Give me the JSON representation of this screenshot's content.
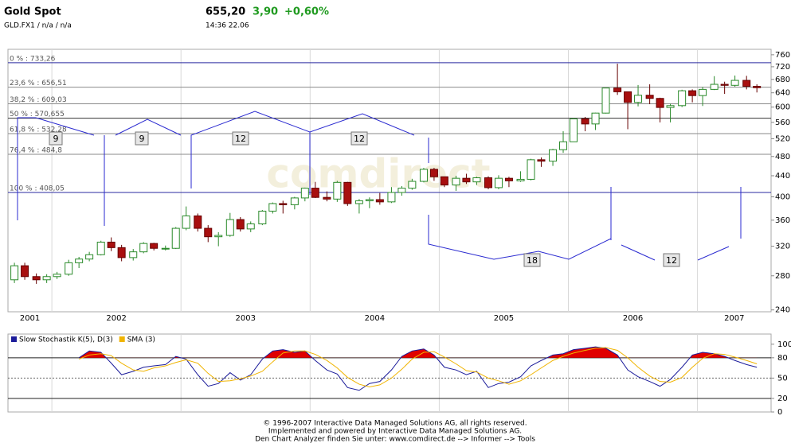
{
  "header": {
    "title": "Gold Spot",
    "price": "655,20",
    "change": "3,90",
    "change_pct": "+0,60%",
    "symbol": "GLD.FX1  /  n/a  /  n/a",
    "time": "14:36   22.06"
  },
  "chart_data": [
    {
      "type": "candlestick",
      "x": [
        2001.71,
        2001.79,
        2001.88,
        2001.96,
        2002.04,
        2002.13,
        2002.21,
        2002.29,
        2002.38,
        2002.46,
        2002.54,
        2002.63,
        2002.71,
        2002.79,
        2002.88,
        2002.96,
        2003.04,
        2003.13,
        2003.21,
        2003.29,
        2003.38,
        2003.46,
        2003.54,
        2003.63,
        2003.71,
        2003.79,
        2003.88,
        2003.96,
        2004.04,
        2004.13,
        2004.21,
        2004.29,
        2004.38,
        2004.46,
        2004.54,
        2004.63,
        2004.71,
        2004.79,
        2004.88,
        2004.96,
        2005.04,
        2005.13,
        2005.21,
        2005.29,
        2005.38,
        2005.46,
        2005.54,
        2005.63,
        2005.71,
        2005.79,
        2005.88,
        2005.96,
        2006.04,
        2006.13,
        2006.21,
        2006.29,
        2006.38,
        2006.46,
        2006.54,
        2006.63,
        2006.71,
        2006.79,
        2006.88,
        2006.96,
        2007.04,
        2007.13,
        2007.21,
        2007.29,
        2007.38,
        2007.46
      ],
      "open": [
        275,
        293,
        279,
        275,
        279,
        282,
        297,
        302,
        308,
        326,
        318,
        304,
        312,
        324,
        317,
        317,
        347,
        367,
        347,
        334,
        336,
        361,
        346,
        354,
        375,
        388,
        386,
        398,
        416,
        399,
        396,
        427,
        388,
        393,
        395,
        391,
        408,
        416,
        429,
        453,
        438,
        422,
        435,
        428,
        436,
        417,
        435,
        430,
        433,
        473,
        470,
        495,
        513,
        569,
        556,
        584,
        654,
        643,
        613,
        633,
        624,
        599,
        604,
        646,
        632,
        650,
        665,
        662,
        677,
        659
      ],
      "high": [
        297,
        297,
        283,
        282,
        285,
        301,
        305,
        312,
        328,
        333,
        322,
        316,
        326,
        325,
        321,
        349,
        383,
        371,
        352,
        341,
        372,
        365,
        358,
        377,
        390,
        393,
        400,
        417,
        428,
        410,
        430,
        428,
        396,
        399,
        407,
        418,
        420,
        434,
        456,
        456,
        438,
        440,
        444,
        438,
        439,
        441,
        438,
        449,
        475,
        478,
        497,
        538,
        571,
        574,
        585,
        654,
        730,
        643,
        663,
        665,
        626,
        609,
        649,
        650,
        657,
        690,
        673,
        692,
        691,
        665
      ],
      "low": [
        271,
        275,
        270,
        271,
        276,
        280,
        290,
        299,
        307,
        313,
        299,
        300,
        310,
        314,
        314,
        316,
        344,
        342,
        326,
        320,
        334,
        342,
        341,
        352,
        371,
        371,
        378,
        392,
        398,
        392,
        391,
        384,
        371,
        380,
        386,
        389,
        402,
        413,
        427,
        430,
        418,
        411,
        424,
        422,
        414,
        414,
        418,
        428,
        431,
        458,
        460,
        488,
        516,
        538,
        541,
        583,
        634,
        543,
        602,
        608,
        560,
        560,
        600,
        613,
        603,
        648,
        637,
        658,
        650,
        641
      ],
      "close": [
        293,
        279,
        275,
        279,
        282,
        297,
        302,
        308,
        326,
        318,
        304,
        312,
        324,
        317,
        317,
        347,
        367,
        347,
        334,
        336,
        361,
        346,
        354,
        375,
        388,
        386,
        398,
        416,
        399,
        396,
        427,
        388,
        393,
        395,
        391,
        408,
        416,
        429,
        453,
        438,
        422,
        435,
        428,
        436,
        417,
        435,
        430,
        433,
        473,
        470,
        495,
        513,
        569,
        556,
        584,
        654,
        643,
        613,
        633,
        624,
        599,
        604,
        646,
        632,
        650,
        665,
        662,
        677,
        659,
        655
      ],
      "up_color": "#2a8a2a",
      "down_color": "#a80f0f",
      "xlim": [
        2001.66,
        2007.57
      ],
      "xticks": [
        2001,
        2002,
        2003,
        2004,
        2005,
        2006,
        2007
      ],
      "grid_x": true,
      "ylim": [
        238,
        779
      ],
      "yticks": [
        240,
        280,
        320,
        360,
        400,
        440,
        480,
        520,
        560,
        600,
        640,
        680,
        720,
        760
      ],
      "log_scale": true,
      "fib_levels": [
        {
          "label": "0 % : 733,26",
          "value": 733.26,
          "color": "#2a2aa0"
        },
        {
          "label": "23,6 % : 656,51",
          "value": 656.51,
          "color": "#8a8a8a"
        },
        {
          "label": "38,2 % : 609,03",
          "value": 609.03,
          "color": "#8a8a8a"
        },
        {
          "label": "50 % : 570,655",
          "value": 570.655,
          "color": "#333333"
        },
        {
          "label": "61,8 % : 532,28",
          "value": 532.28,
          "color": "#8a8a8a"
        },
        {
          "label": "76,4 % : 484,8",
          "value": 484.8,
          "color": "#8a8a8a"
        },
        {
          "label": "100 % : 408,05",
          "value": 408.05,
          "color": "#2a2aa0"
        }
      ],
      "annotations": [
        "9",
        "9",
        "12",
        "12",
        "18",
        "12"
      ],
      "watermark": "comdirect"
    },
    {
      "type": "line",
      "series": [
        {
          "name": "Slow Stochastik K(5), D(3)",
          "color": "#1c1c9a",
          "values": [
            null,
            null,
            null,
            null,
            null,
            null,
            80,
            90,
            88,
            72,
            55,
            60,
            66,
            68,
            70,
            82,
            78,
            55,
            38,
            42,
            58,
            47,
            55,
            78,
            90,
            92,
            88,
            90,
            76,
            62,
            56,
            36,
            32,
            42,
            45,
            62,
            82,
            90,
            93,
            84,
            66,
            62,
            55,
            60,
            36,
            42,
            44,
            52,
            68,
            76,
            84,
            86,
            92,
            94,
            96,
            94,
            84,
            62,
            52,
            45,
            38,
            48,
            66,
            84,
            88,
            86,
            82,
            76,
            70,
            66
          ]
        },
        {
          "name": "SMA (3)",
          "color": "#f0b400",
          "values": [
            null,
            null,
            null,
            null,
            null,
            null,
            78,
            84,
            86,
            83,
            72,
            62,
            60,
            65,
            68,
            73,
            77,
            72,
            57,
            45,
            46,
            49,
            53,
            60,
            74,
            87,
            90,
            90,
            85,
            76,
            65,
            51,
            41,
            37,
            40,
            50,
            63,
            78,
            88,
            89,
            81,
            71,
            61,
            59,
            50,
            46,
            41,
            46,
            55,
            65,
            76,
            82,
            87,
            91,
            94,
            95,
            91,
            80,
            66,
            53,
            45,
            44,
            51,
            66,
            79,
            86,
            85,
            81,
            76,
            71
          ]
        }
      ],
      "fill_above": 80,
      "fill_color": "#e00000",
      "ylim": [
        0,
        115
      ],
      "yticks": [
        0,
        20,
        50,
        80,
        100
      ],
      "levels": [
        20,
        50,
        80
      ],
      "dashed_levels": [
        50
      ]
    }
  ],
  "footer": [
    "© 1996-2007 Interactive Data Managed Solutions AG, all rights reserved.",
    "Implemented and powered by Interactive Data Managed Solutions AG.",
    "Den Chart Analyzer finden Sie unter: www.comdirect.de --> Informer --> Tools"
  ]
}
